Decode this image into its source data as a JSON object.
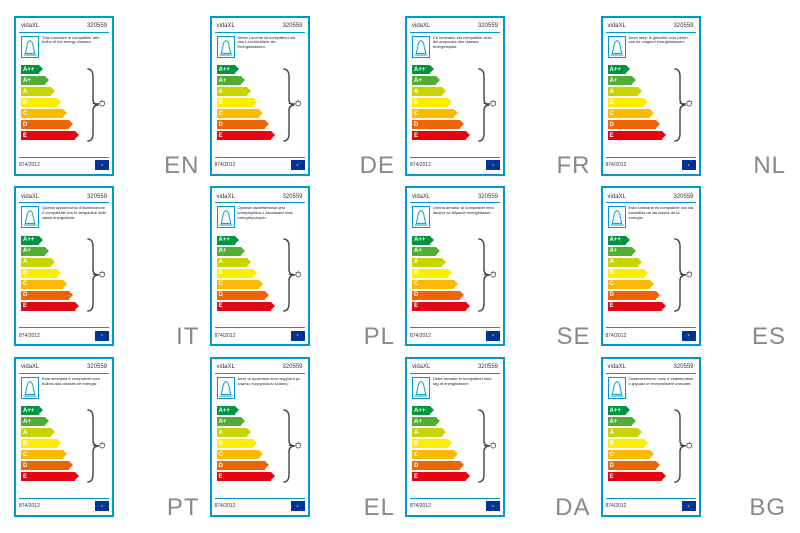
{
  "brand": "vidaXL",
  "product_code": "320559",
  "regulation": "874/2012",
  "energy_classes": {
    "letters": [
      "A++",
      "A+",
      "A",
      "B",
      "C",
      "D",
      "E"
    ],
    "colors": [
      "#009640",
      "#52ae32",
      "#c8d400",
      "#ffed00",
      "#fbba00",
      "#ec6608",
      "#e30613"
    ]
  },
  "border_color": "#0099cc",
  "eu_flag": {
    "bg": "#003399",
    "stars": "#ffcc00"
  },
  "lang_color": "#888888",
  "labels": [
    {
      "lang": "EN",
      "text": "This luminaire is compatible with bulbs of the energy classes:"
    },
    {
      "lang": "DE",
      "text": "Diese Leuchte ist kompatibel mit den Leuchtmitteln der Energieklassen:"
    },
    {
      "lang": "FR",
      "text": "Ce luminaire est compatible avec les ampoules des classes énergétiques:"
    },
    {
      "lang": "NL",
      "text": "Deze lamp is geschikt voor peren van de volgend energieklassen:"
    },
    {
      "lang": "IT",
      "text": "Questa apparecchio d'illuminazione è compatibile con le lampadine delle classi energetiche:"
    },
    {
      "lang": "PL",
      "text": "Oprawa oświetleniowa jest kompatybilna z żarówkami klas energetycznych:"
    },
    {
      "lang": "SE",
      "text": "Denna armatur är kompatibel med lampor av följande energiklasser:"
    },
    {
      "lang": "ES",
      "text": "Esta luminaria es compatible con las bombillas de las clases de la energía:"
    },
    {
      "lang": "PT",
      "text": "Esta luminária é compatível com bulbos das classes de energia:"
    },
    {
      "lang": "EL",
      "text": "Αυτό το φωτιστικό είναι συμβατό με λάμπες ενεργειακών κλάσεις:"
    },
    {
      "lang": "DA",
      "text": "Dette armatur er kompatibel med løg af energiklasser:"
    },
    {
      "lang": "BG",
      "text": "Осветителното тяло е съвместимо с крушки от енергийните класове:"
    }
  ]
}
